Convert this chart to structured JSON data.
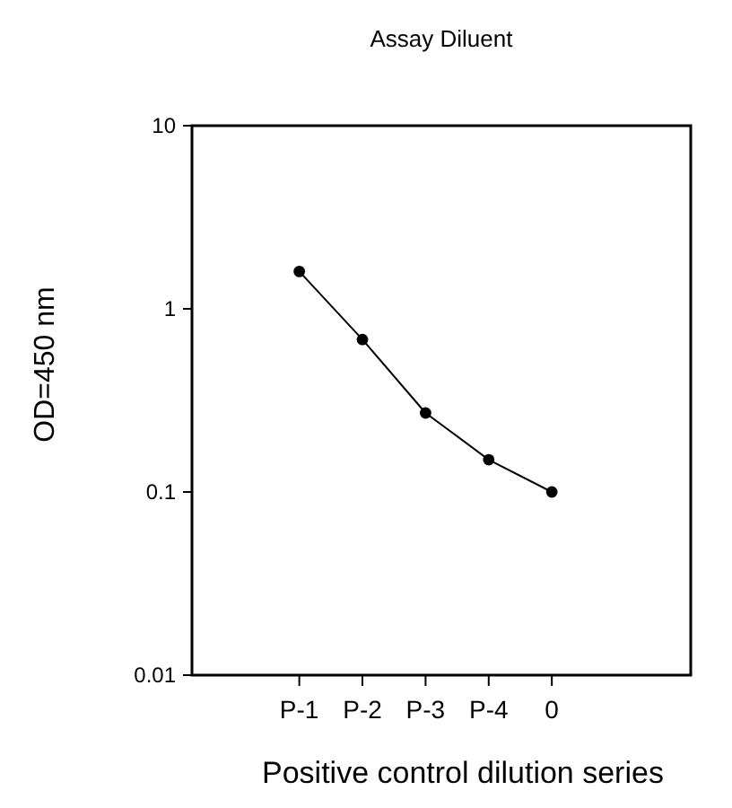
{
  "chart_data": {
    "type": "line",
    "title": "Assay Diluent",
    "xlabel": "Positive control dilution series",
    "ylabel": "OD=450 nm",
    "categories": [
      "P-1",
      "P-2",
      "P-3",
      "P-4",
      "0"
    ],
    "series": [
      {
        "color": "#000000",
        "values": [
          1.6,
          0.68,
          0.27,
          0.15,
          0.1
        ]
      }
    ],
    "log": "y",
    "ylim": [
      0.01,
      10
    ],
    "yticks": [
      0.01,
      0.1,
      1,
      10
    ],
    "marker": "circle",
    "line_style": "solid"
  }
}
